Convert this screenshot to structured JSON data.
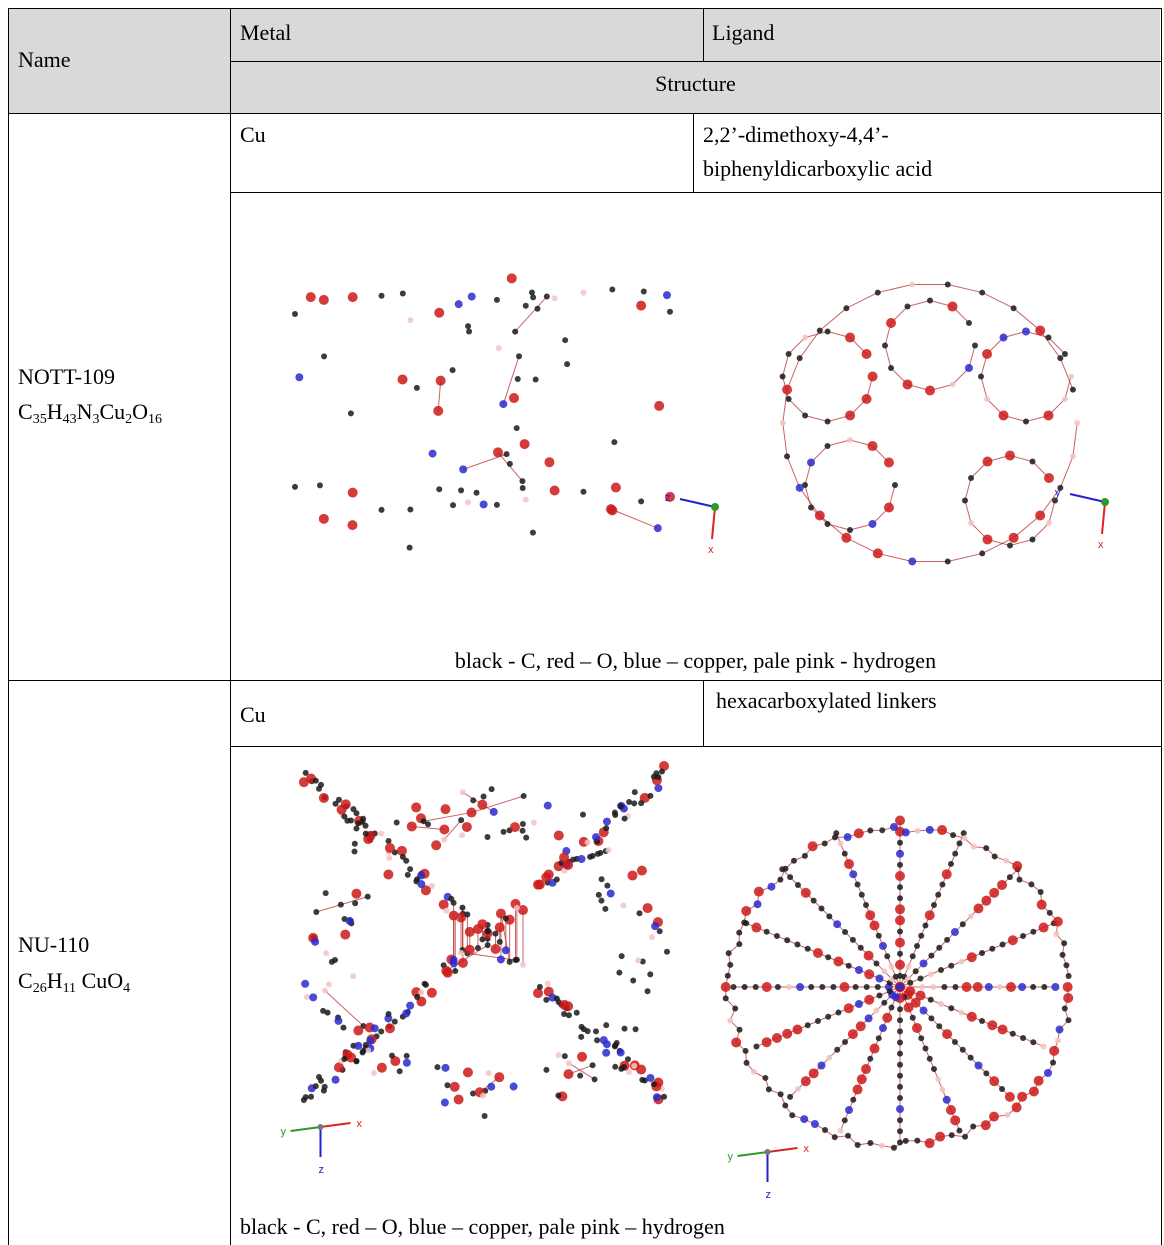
{
  "header": {
    "name_label": "Name",
    "metal_label": "Metal",
    "ligand_label": "Ligand",
    "structure_label": "Structure"
  },
  "rows": [
    {
      "name": "NOTT-109",
      "formula": [
        {
          "t": "C",
          "s": "35"
        },
        {
          "t": "H",
          "s": "43"
        },
        {
          "t": "N",
          "s": "3"
        },
        {
          "t": "Cu",
          "s": "2"
        },
        {
          "t": "O",
          "s": "16"
        }
      ],
      "metal": "Cu",
      "ligand_line1": "2,2’-dimethoxy-4,4’-",
      "ligand_line2": "biphenyldicarboxylic acid",
      "axes": [
        {
          "a": "z",
          "b": "x"
        },
        {
          "a": "y",
          "b": "x"
        }
      ],
      "caption": "black - C, red – O, blue – copper, pale pink - hydrogen"
    },
    {
      "name": "NU-110",
      "formula": [
        {
          "t": "C",
          "s": "26"
        },
        {
          "t": "H",
          "s": "11"
        },
        {
          "t": " CuO",
          "s": "4"
        }
      ],
      "metal": "Cu",
      "ligand_line1": "hexacarboxylated linkers",
      "axes": [
        {
          "a": "y",
          "b": "x",
          "c": "z"
        },
        {
          "a": "y",
          "b": "x",
          "c": "z"
        }
      ],
      "caption": "black - C, red – O, blue – copper, pale pink – hydrogen"
    }
  ],
  "colors": {
    "header_bg": "#d9d9d9",
    "carbon": "#1a1a1a",
    "oxygen": "#cc1a1a",
    "copper": "#2a2acc",
    "hydrogen": "#f2c4c4",
    "bond": "#b22222"
  }
}
